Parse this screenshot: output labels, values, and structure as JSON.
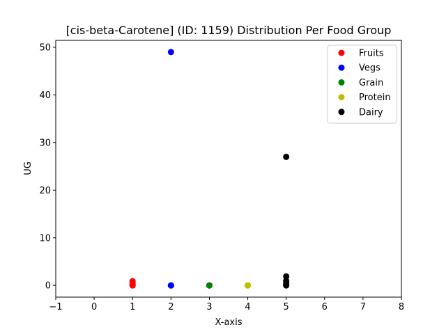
{
  "chart_data": {
    "type": "scatter",
    "title": "[cis-beta-Carotene] (ID: 1159) Distribution Per Food Group",
    "xlabel": "X-axis",
    "ylabel": "UG",
    "xlim": [
      -1,
      8
    ],
    "ylim": [
      -2.45,
      51.45
    ],
    "x_ticks": [
      -1,
      0,
      1,
      2,
      3,
      4,
      5,
      6,
      7,
      8
    ],
    "y_ticks": [
      0,
      10,
      20,
      30,
      40,
      50
    ],
    "grid": false,
    "legend_position": "top-right",
    "series": [
      {
        "name": "Fruits",
        "color": "#ff0000",
        "x": [
          1,
          1,
          1,
          1,
          1
        ],
        "y": [
          0,
          0,
          0.2,
          0.5,
          0.9
        ]
      },
      {
        "name": "Vegs",
        "color": "#0000ff",
        "x": [
          2,
          2,
          2,
          2
        ],
        "y": [
          49,
          0,
          0,
          0
        ]
      },
      {
        "name": "Grain",
        "color": "#008000",
        "x": [
          3,
          3,
          3
        ],
        "y": [
          0,
          0,
          0
        ]
      },
      {
        "name": "Protein",
        "color": "#bfbf00",
        "x": [
          4,
          4,
          4
        ],
        "y": [
          0,
          0,
          0
        ]
      },
      {
        "name": "Dairy",
        "color": "#000000",
        "x": [
          5,
          5,
          5,
          5,
          5,
          5
        ],
        "y": [
          27,
          1.9,
          1,
          0.6,
          0.2,
          0
        ]
      }
    ]
  }
}
